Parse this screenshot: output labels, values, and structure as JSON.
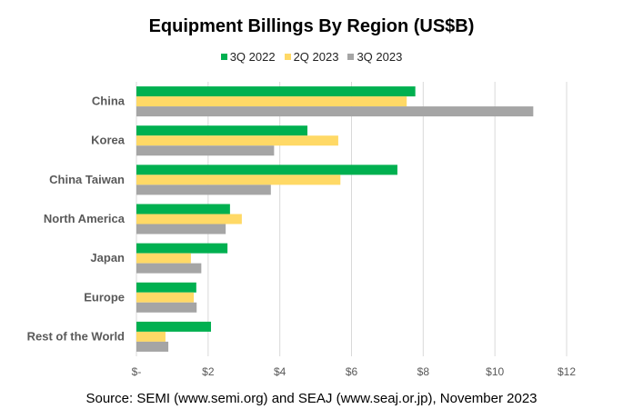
{
  "chart_data": {
    "type": "bar",
    "orientation": "horizontal",
    "title": "Equipment Billings By Region (US$B)",
    "categories": [
      "China",
      "Korea",
      "China Taiwan",
      "North America",
      "Japan",
      "Europe",
      "Rest of the World"
    ],
    "series": [
      {
        "name": "3Q 2022",
        "color": "#00b050",
        "values": [
          7.78,
          4.77,
          7.28,
          2.61,
          2.54,
          1.67,
          2.08
        ]
      },
      {
        "name": "2Q 2023",
        "color": "#ffd966",
        "values": [
          7.54,
          5.63,
          5.69,
          2.94,
          1.52,
          1.6,
          0.81
        ]
      },
      {
        "name": "3Q 2023",
        "color": "#a5a5a5",
        "values": [
          11.07,
          3.84,
          3.75,
          2.49,
          1.81,
          1.68,
          0.89
        ]
      }
    ],
    "xlim": [
      0,
      12
    ],
    "xticks": [
      0,
      2,
      4,
      6,
      8,
      10,
      12
    ],
    "xtick_labels": [
      "$-",
      "$2",
      "$4",
      "$6",
      "$8",
      "$10",
      "$12"
    ],
    "legend_position": "top",
    "grid": "vertical",
    "source": "Source: SEMI (www.semi.org) and SEAJ (www.seaj.or.jp), November 2023"
  }
}
